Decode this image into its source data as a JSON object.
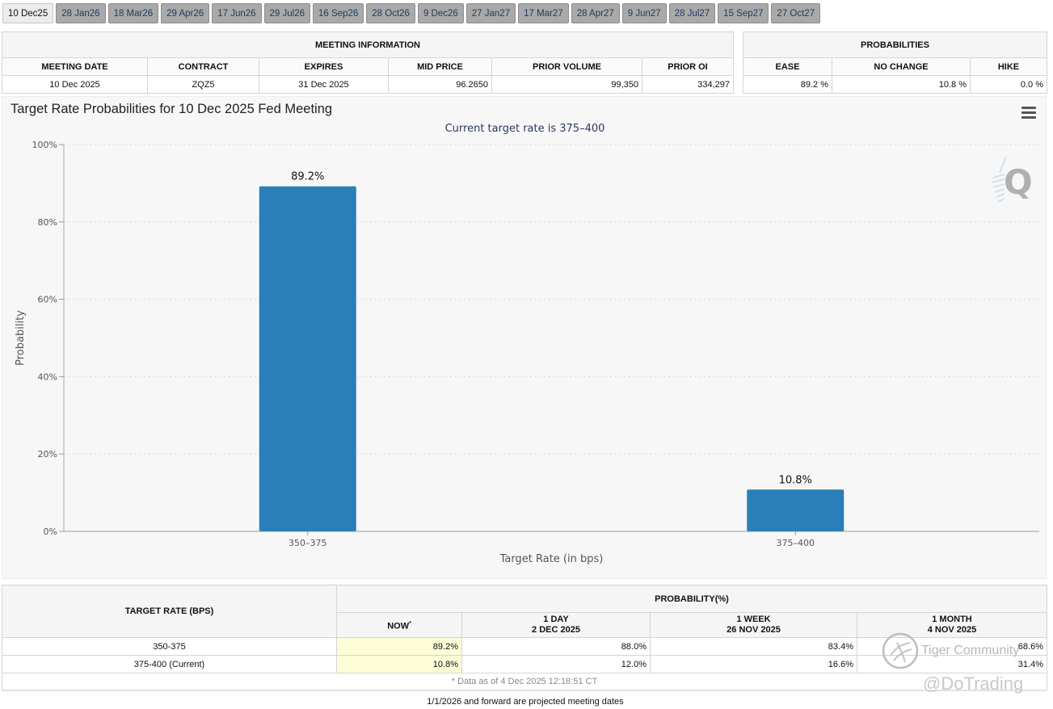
{
  "tabs": [
    {
      "label": "10 Dec25",
      "active": true
    },
    {
      "label": "28 Jan26"
    },
    {
      "label": "18 Mar26"
    },
    {
      "label": "29 Apr26"
    },
    {
      "label": "17 Jun26"
    },
    {
      "label": "29 Jul26"
    },
    {
      "label": "16 Sep26"
    },
    {
      "label": "28 Oct26"
    },
    {
      "label": "9 Dec26"
    },
    {
      "label": "27 Jan27"
    },
    {
      "label": "17 Mar27"
    },
    {
      "label": "28 Apr27"
    },
    {
      "label": "9 Jun27"
    },
    {
      "label": "28 Jul27"
    },
    {
      "label": "15 Sep27"
    },
    {
      "label": "27 Oct27"
    }
  ],
  "meeting_info": {
    "title": "MEETING INFORMATION",
    "headers": [
      "MEETING DATE",
      "CONTRACT",
      "EXPIRES",
      "MID PRICE",
      "PRIOR VOLUME",
      "PRIOR OI"
    ],
    "row": [
      "10 Dec 2025",
      "ZQZ5",
      "31 Dec 2025",
      "96.2650",
      "99,350",
      "334,297"
    ]
  },
  "probabilities": {
    "title": "PROBABILITIES",
    "headers": [
      "EASE",
      "NO CHANGE",
      "HIKE"
    ],
    "row": [
      "89.2 %",
      "10.8 %",
      "0.0 %"
    ]
  },
  "chart_data": {
    "type": "bar",
    "title": "Target Rate Probabilities for 10 Dec 2025 Fed Meeting",
    "subtitle": "Current target rate is 375–400",
    "categories": [
      "350–375",
      "375–400"
    ],
    "values": [
      89.2,
      10.8
    ],
    "data_labels": [
      "89.2%",
      "10.8%"
    ],
    "xlabel": "Target Rate (in bps)",
    "ylabel": "Probability",
    "ylim": [
      0,
      100
    ],
    "yticks": [
      0,
      20,
      40,
      60,
      80,
      100
    ],
    "ytick_labels": [
      "0%",
      "20%",
      "40%",
      "60%",
      "80%",
      "100%"
    ],
    "grid": true,
    "bar_color": "#2a7fb8"
  },
  "chart_menu_icon": "hamburger-menu-icon",
  "rate_table": {
    "col_target": "TARGET RATE (BPS)",
    "col_prob": "PROBABILITY(%)",
    "col_now": "NOW",
    "col_now_mark": "*",
    "col_day": "1 DAY",
    "col_day_date": "2 DEC 2025",
    "col_week": "1 WEEK",
    "col_week_date": "26 NOV 2025",
    "col_month": "1 MONTH",
    "col_month_date": "4 NOV 2025",
    "rows": [
      [
        "350-375",
        "89.2%",
        "88.0%",
        "83.4%",
        "68.6%"
      ],
      [
        "375-400 (Current)",
        "10.8%",
        "12.0%",
        "16.6%",
        "31.4%"
      ]
    ],
    "footnote": "* Data as of 4 Dec 2025 12:18:51 CT"
  },
  "projected_note": "1/1/2026 and forward are projected meeting dates",
  "watermark": {
    "community": "Tiger Community",
    "handle": "@DoTrading"
  }
}
